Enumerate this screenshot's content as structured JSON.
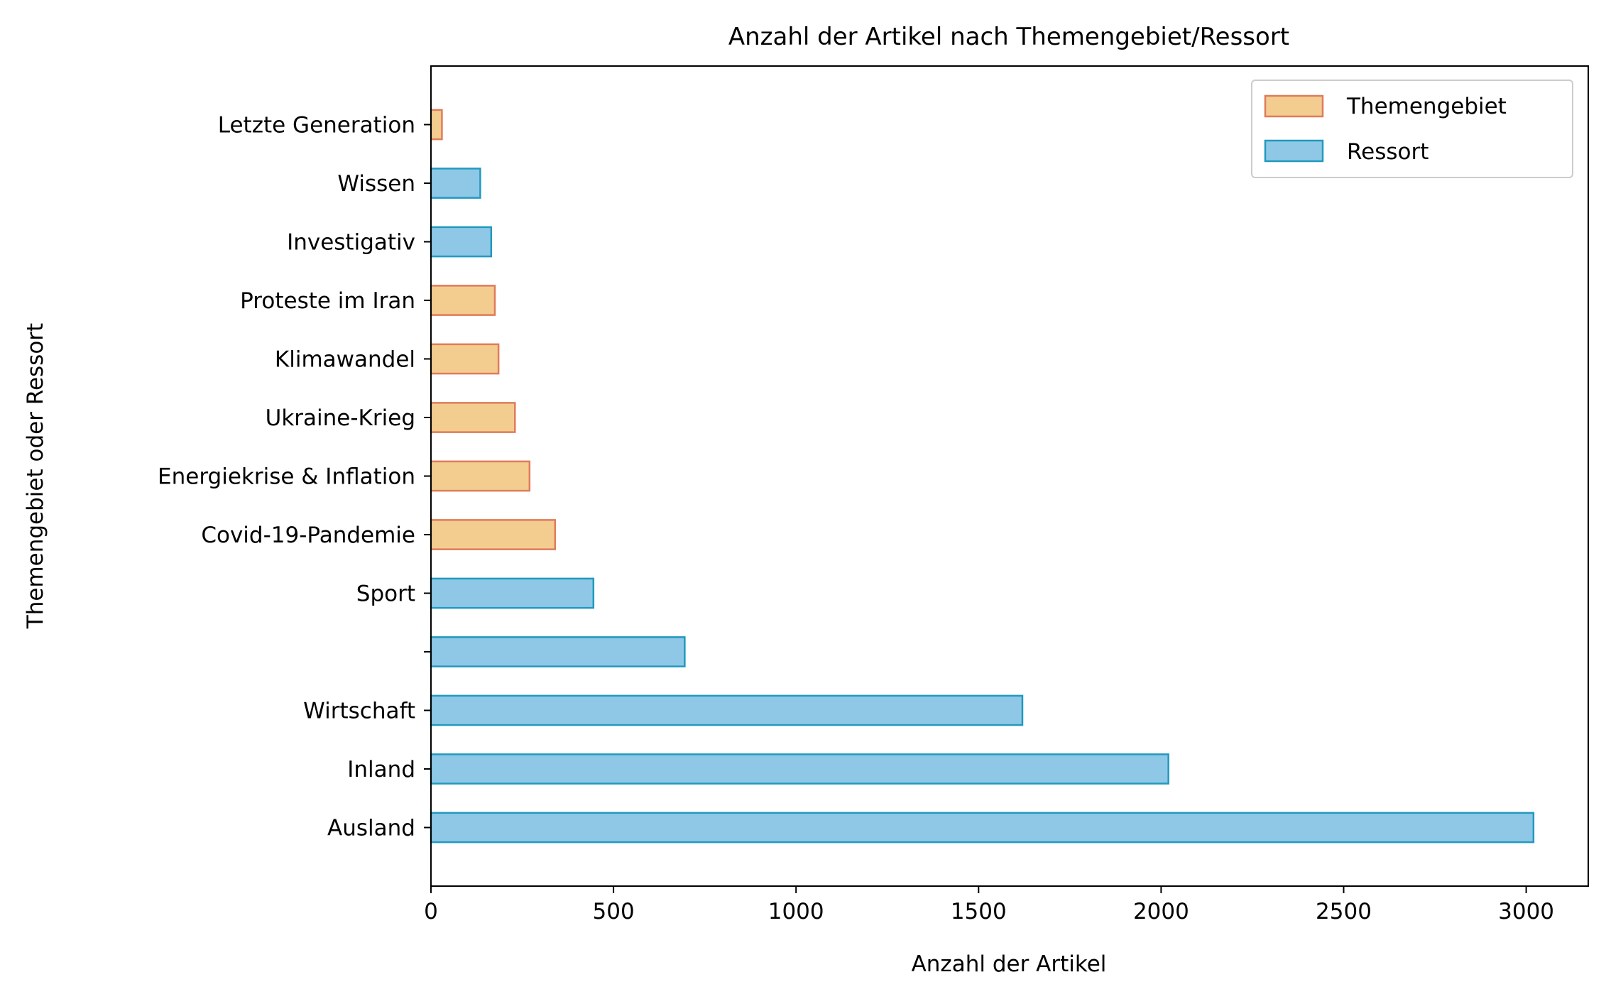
{
  "chart_data": {
    "type": "bar",
    "orientation": "horizontal",
    "title": "Anzahl der Artikel nach Themengebiet/Ressort",
    "xlabel": "Anzahl der Artikel",
    "ylabel": "Themengebiet oder Ressort",
    "xlim": [
      0,
      3170
    ],
    "xticks": [
      0,
      500,
      1000,
      1500,
      2000,
      2500,
      3000
    ],
    "grid": false,
    "legend_position": "top-right",
    "categories": [
      "Ausland",
      "Inland",
      "Wirtschaft",
      "",
      "Sport",
      "Covid-19-Pandemie",
      "Energiekrise & Inflation",
      "Ukraine-Krieg",
      "Klimawandel",
      "Proteste im Iran",
      "Investigativ",
      "Wissen",
      "Letzte Generation"
    ],
    "values": [
      3020,
      2020,
      1620,
      695,
      445,
      340,
      270,
      230,
      185,
      175,
      165,
      135,
      30
    ],
    "groups": [
      "Ressort",
      "Ressort",
      "Ressort",
      "Ressort",
      "Ressort",
      "Themengebiet",
      "Themengebiet",
      "Themengebiet",
      "Themengebiet",
      "Themengebiet",
      "Ressort",
      "Ressort",
      "Themengebiet"
    ],
    "series": [
      {
        "name": "Themengebiet",
        "fill": "#f3cc90",
        "edge": "#e07b5b"
      },
      {
        "name": "Ressort",
        "fill": "#8fc8e6",
        "edge": "#2199bf"
      }
    ]
  }
}
